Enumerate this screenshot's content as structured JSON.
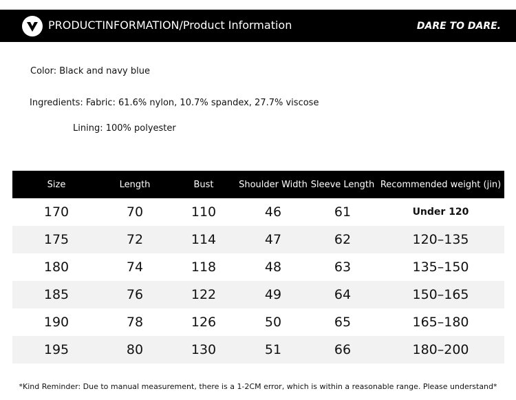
{
  "header": {
    "title": "PRODUCTINFORMATION/Product Information",
    "slogan": "DARE TO DARE."
  },
  "info": {
    "color": "Color: Black and navy blue",
    "ingredients": "Ingredients: Fabric: 61.6% nylon, 10.7% spandex, 27.7% viscose",
    "lining": "Lining: 100% polyester"
  },
  "table": {
    "columns": [
      "Size",
      "Length",
      "Bust",
      "Shoulder Width",
      "Sleeve Length",
      "Recommended weight (jin)"
    ],
    "rows": [
      [
        "170",
        "70",
        "110",
        "46",
        "61",
        "Under 120"
      ],
      [
        "175",
        "72",
        "114",
        "47",
        "62",
        "120–135"
      ],
      [
        "180",
        "74",
        "118",
        "48",
        "63",
        "135–150"
      ],
      [
        "185",
        "76",
        "122",
        "49",
        "64",
        "150–165"
      ],
      [
        "190",
        "78",
        "126",
        "50",
        "65",
        "165–180"
      ],
      [
        "195",
        "80",
        "130",
        "51",
        "66",
        "180–200"
      ]
    ]
  },
  "footer": {
    "note": "*Kind Reminder: Due to manual measurement, there is a 1-2CM error, which is within a reasonable range. Please understand*"
  }
}
